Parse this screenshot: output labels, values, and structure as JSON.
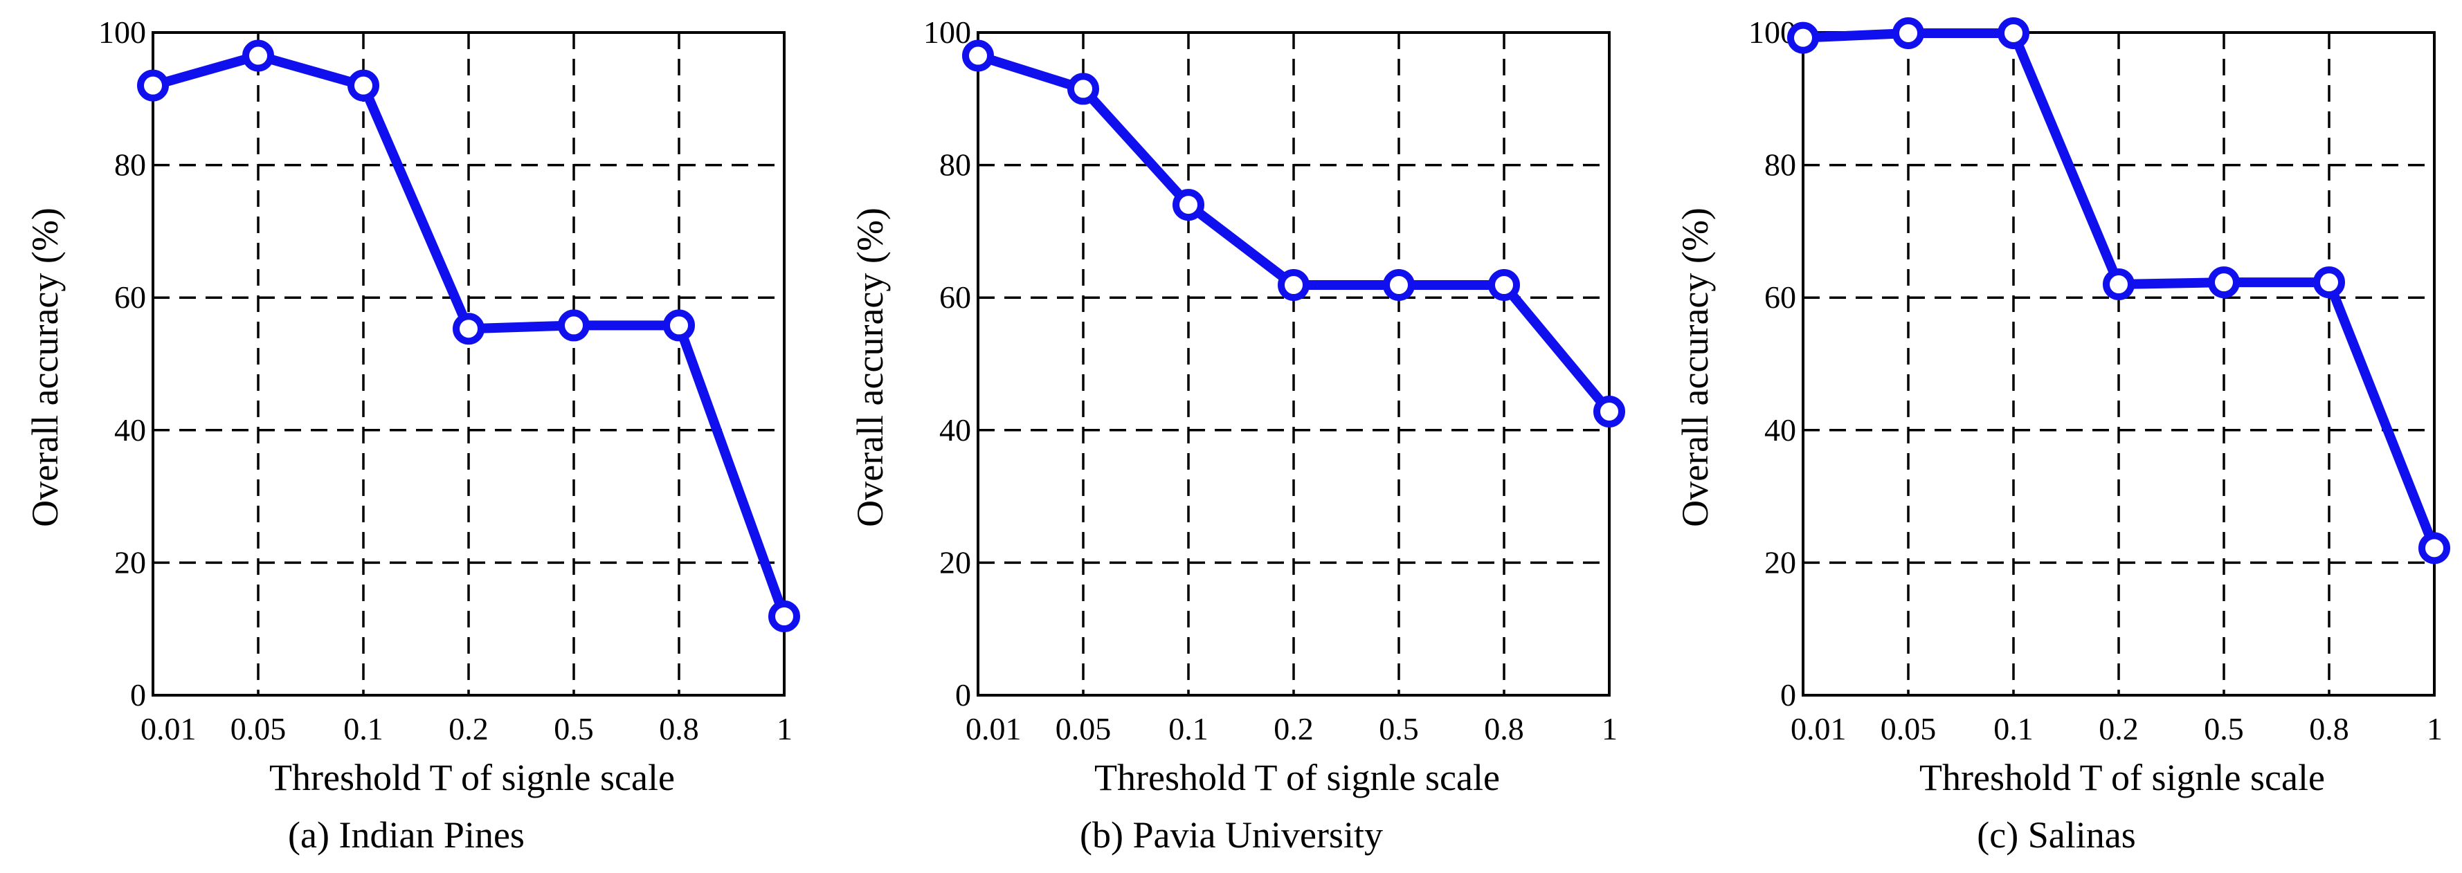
{
  "style": {
    "series_color": "#1010ee"
  },
  "chart_data": [
    {
      "type": "line",
      "panel": "a",
      "caption": "(a)  Indian Pines",
      "title": "",
      "xlabel": "Threshold T of signle scale",
      "ylabel": "Overall accuracy (%)",
      "categories": [
        "0.01",
        "0.05",
        "0.1",
        "0.2",
        "0.5",
        "0.8",
        "1"
      ],
      "series": [
        {
          "name": "Overall accuracy",
          "values": [
            92.0,
            96.5,
            92.0,
            55.3,
            55.8,
            55.8,
            11.9
          ]
        }
      ],
      "ylim": [
        0,
        100
      ],
      "yticks": [
        "0",
        "20",
        "40",
        "60",
        "80",
        "100"
      ],
      "grid": true
    },
    {
      "type": "line",
      "panel": "b",
      "caption": "(b)  Pavia University",
      "title": "",
      "xlabel": "Threshold T of signle scale",
      "ylabel": "Overall accuracy (%)",
      "categories": [
        "0.01",
        "0.05",
        "0.1",
        "0.2",
        "0.5",
        "0.8",
        "1"
      ],
      "series": [
        {
          "name": "Overall accuracy",
          "values": [
            96.5,
            91.5,
            74.0,
            61.9,
            61.9,
            61.9,
            42.8
          ]
        }
      ],
      "ylim": [
        0,
        100
      ],
      "yticks": [
        "0",
        "20",
        "40",
        "60",
        "80",
        "100"
      ],
      "grid": true
    },
    {
      "type": "line",
      "panel": "c",
      "caption": "(c)  Salinas",
      "title": "",
      "xlabel": "Threshold T of signle scale",
      "ylabel": "Overall accuracy (%)",
      "categories": [
        "0.01",
        "0.05",
        "0.1",
        "0.2",
        "0.5",
        "0.8",
        "1"
      ],
      "series": [
        {
          "name": "Overall accuracy",
          "values": [
            99.2,
            99.9,
            99.9,
            62.0,
            62.3,
            62.3,
            22.2
          ]
        }
      ],
      "ylim": [
        0,
        100
      ],
      "yticks": [
        "0",
        "20",
        "40",
        "60",
        "80",
        "100"
      ],
      "grid": true
    }
  ]
}
